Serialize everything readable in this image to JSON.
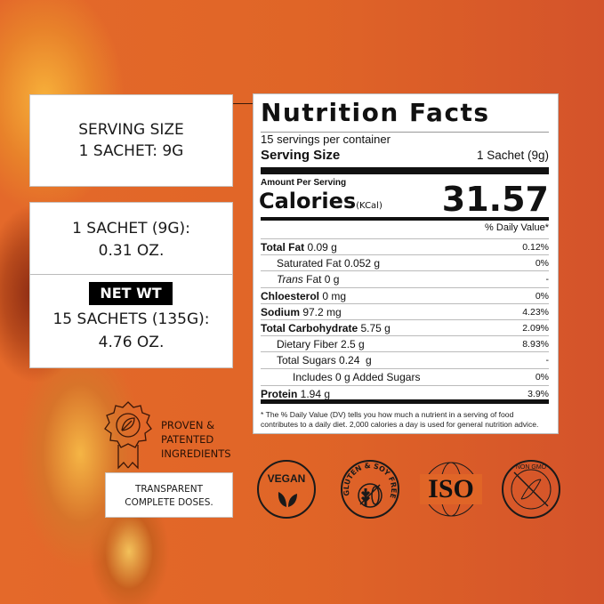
{
  "left": {
    "serving_box": {
      "line1": "SERVING SIZE",
      "line2": "1 SACHET: 9G"
    },
    "weight_box": {
      "line1": "1 SACHET (9G):",
      "line2": "0.31 OZ.",
      "net_wt_label": "NET WT",
      "line3": "15 SACHETS (135G):",
      "line4": "4.76 OZ."
    },
    "proven": {
      "icon": "award-ribbon-leaf-icon",
      "line1": "PROVEN &",
      "line2": "PATENTED",
      "line3": "INGREDIENTS"
    },
    "transparent": {
      "line1": "TRANSPARENT",
      "line2": "COMPLETE DOSES."
    }
  },
  "nutrition": {
    "title": "Nutrition Facts",
    "servings": "15 servings per container",
    "serving_size_label": "Serving Size",
    "serving_size_value": "1 Sachet (9g)",
    "amount_per_serving": "Amount Per Serving",
    "calories_label": "Calories",
    "calories_unit": "(KCal)",
    "calories_value": "31.57",
    "dv_header": "% Daily Value*",
    "rows": [
      {
        "bold": "Total Fat",
        "amount": " 0.09 g",
        "dv": "0.12%"
      },
      {
        "bold": "",
        "amount": "Saturated Fat 0.052 g",
        "dv": "0%"
      },
      {
        "italic": "Trans",
        "amount": " Fat 0 g",
        "dv": "-"
      },
      {
        "bold": "Chloesterol",
        "amount": " 0 mg",
        "dv": "0%"
      },
      {
        "bold": "Sodium",
        "amount": " 97.2 mg",
        "dv": "4.23%"
      },
      {
        "bold": "Total Carbohydrate",
        "amount": " 5.75 g",
        "dv": "2.09%"
      },
      {
        "bold": "",
        "amount": "Dietary Fiber 2.5 g",
        "dv": "8.93%"
      },
      {
        "bold": "",
        "amount": "Total Sugars 0.24  g",
        "dv": "-"
      },
      {
        "bold": "",
        "amount": "Includes 0 g Added Sugars",
        "dv": "0%"
      },
      {
        "bold": "Protein",
        "amount": " 1.94 g",
        "dv": "3.9%"
      }
    ],
    "footnote": "* The % Daily Value (DV) tells you how much a nutrient in a serving of food contributes to a daily diet. 2,000 calories a day is used for general nutrition advice."
  },
  "badges": [
    {
      "icon": "vegan-leaf-icon",
      "text": "VEGAN"
    },
    {
      "icon": "gluten-soy-free-icon",
      "text": "GLUTEN & SOY FREE"
    },
    {
      "icon": "iso-globe-icon",
      "text": "ISO"
    },
    {
      "icon": "non-gmo-dna-icon",
      "text": "NON GMO"
    }
  ],
  "colors": {
    "background": "#e06527",
    "panel": "#ffffff",
    "ink": "#111111"
  }
}
